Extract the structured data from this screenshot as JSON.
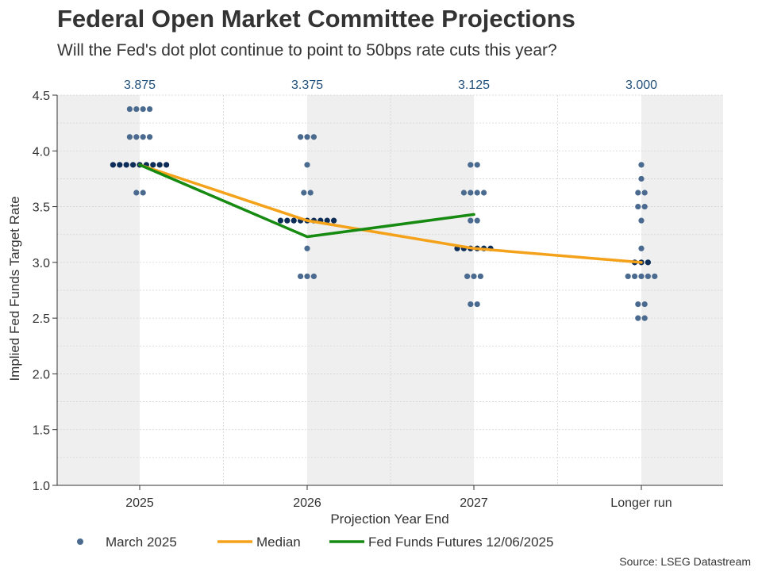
{
  "header": {
    "title": "Federal Open Market Committee Projections",
    "subtitle": "Will the Fed's dot plot continue to point to 50bps rate cuts this year?"
  },
  "source": "Source: LSEG Datastream",
  "colors": {
    "dots": "#4a6b8f",
    "dots_median": "#0b2d57",
    "median_line": "#f5a21b",
    "futures_line": "#178a12",
    "median_label": "#1f4e79",
    "shade": "#efefef"
  },
  "chart_data": {
    "type": "scatter",
    "xlabel": "Projection Year End",
    "ylabel": "Implied Fed Funds Target Rate",
    "ylim": [
      1.0,
      4.5
    ],
    "yticks": [
      "1.0",
      "1.5",
      "2.0",
      "2.5",
      "3.0",
      "3.5",
      "4.0",
      "4.5"
    ],
    "categories": [
      "2025",
      "2026",
      "2027",
      "Longer run"
    ],
    "median_labels": [
      "3.875",
      "3.375",
      "3.125",
      "3.000"
    ],
    "dots": [
      {
        "category": "2025",
        "levels": [
          {
            "rate": 4.375,
            "count": 4
          },
          {
            "rate": 4.125,
            "count": 4
          },
          {
            "rate": 3.875,
            "count": 9
          },
          {
            "rate": 3.625,
            "count": 2
          }
        ]
      },
      {
        "category": "2026",
        "levels": [
          {
            "rate": 4.125,
            "count": 3
          },
          {
            "rate": 3.875,
            "count": 1
          },
          {
            "rate": 3.625,
            "count": 2
          },
          {
            "rate": 3.375,
            "count": 9
          },
          {
            "rate": 3.125,
            "count": 1
          },
          {
            "rate": 2.875,
            "count": 3
          }
        ]
      },
      {
        "category": "2027",
        "levels": [
          {
            "rate": 3.875,
            "count": 2
          },
          {
            "rate": 3.625,
            "count": 4
          },
          {
            "rate": 3.375,
            "count": 2
          },
          {
            "rate": 3.125,
            "count": 6
          },
          {
            "rate": 2.875,
            "count": 3
          },
          {
            "rate": 2.625,
            "count": 2
          }
        ]
      },
      {
        "category": "Longer run",
        "levels": [
          {
            "rate": 3.875,
            "count": 1
          },
          {
            "rate": 3.75,
            "count": 1
          },
          {
            "rate": 3.625,
            "count": 2
          },
          {
            "rate": 3.5,
            "count": 2
          },
          {
            "rate": 3.375,
            "count": 1
          },
          {
            "rate": 3.125,
            "count": 1
          },
          {
            "rate": 3.0,
            "count": 3
          },
          {
            "rate": 2.875,
            "count": 5
          },
          {
            "rate": 2.625,
            "count": 2
          },
          {
            "rate": 2.5,
            "count": 2
          }
        ]
      }
    ],
    "series": [
      {
        "name": "Median",
        "points": [
          {
            "x": "2025",
            "y": 3.875
          },
          {
            "x": "2026",
            "y": 3.375
          },
          {
            "x": "2027",
            "y": 3.125
          },
          {
            "x": "Longer run",
            "y": 3.0
          }
        ]
      },
      {
        "name": "Fed Funds Futures 12/06/2025",
        "points": [
          {
            "x": "2025",
            "y": 3.875
          },
          {
            "x": "2026",
            "y": 3.23
          },
          {
            "x": "2027",
            "y": 3.43
          }
        ]
      }
    ],
    "legend": [
      "March 2025",
      "Median",
      "Fed Funds Futures 12/06/2025"
    ],
    "legend_position": "bottom",
    "grid": true
  }
}
